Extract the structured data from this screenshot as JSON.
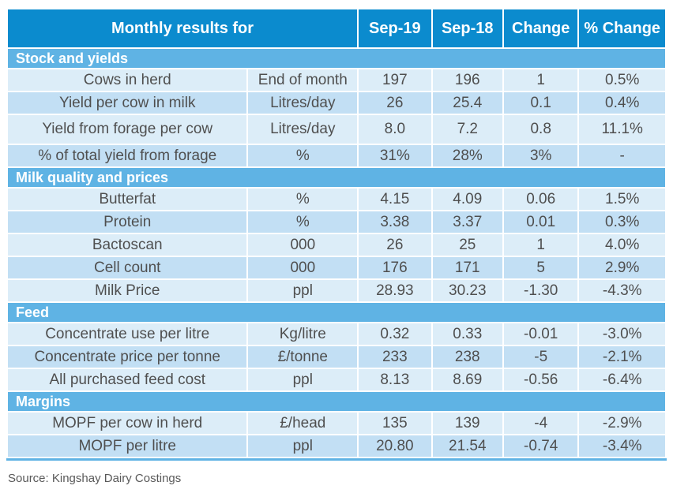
{
  "chart_data": {
    "type": "table",
    "title": "Monthly results for",
    "columns": [
      "Sep-19",
      "Sep-18",
      "Change",
      "% Change"
    ],
    "sections": [
      {
        "title": "Stock and yields",
        "rows": [
          {
            "label": "Cows in herd",
            "unit": "End of month",
            "sep19": "197",
            "sep18": "196",
            "change": "1",
            "pct_change": "0.5%"
          },
          {
            "label": "Yield per cow in milk",
            "unit": "Litres/day",
            "sep19": "26",
            "sep18": "25.4",
            "change": "0.1",
            "pct_change": "0.4%"
          },
          {
            "label": "Yield from forage per cow",
            "unit": "Litres/day",
            "sep19": "8.0",
            "sep18": "7.2",
            "change": "0.8",
            "pct_change": "11.1%"
          },
          {
            "label": "% of total yield from forage",
            "unit": "%",
            "sep19": "31%",
            "sep18": "28%",
            "change": "3%",
            "pct_change": "-"
          }
        ]
      },
      {
        "title": "Milk quality and prices",
        "rows": [
          {
            "label": "Butterfat",
            "unit": "%",
            "sep19": "4.15",
            "sep18": "4.09",
            "change": "0.06",
            "pct_change": "1.5%"
          },
          {
            "label": "Protein",
            "unit": "%",
            "sep19": "3.38",
            "sep18": "3.37",
            "change": "0.01",
            "pct_change": "0.3%"
          },
          {
            "label": "Bactoscan",
            "unit": "000",
            "sep19": "26",
            "sep18": "25",
            "change": "1",
            "pct_change": "4.0%"
          },
          {
            "label": "Cell count",
            "unit": "000",
            "sep19": "176",
            "sep18": "171",
            "change": "5",
            "pct_change": "2.9%"
          },
          {
            "label": "Milk Price",
            "unit": "ppl",
            "sep19": "28.93",
            "sep18": "30.23",
            "change": "-1.30",
            "pct_change": "-4.3%"
          }
        ]
      },
      {
        "title": "Feed",
        "rows": [
          {
            "label": "Concentrate use per litre",
            "unit": "Kg/litre",
            "sep19": "0.32",
            "sep18": "0.33",
            "change": "-0.01",
            "pct_change": "-3.0%"
          },
          {
            "label": "Concentrate price per tonne",
            "unit": "£/tonne",
            "sep19": "233",
            "sep18": "238",
            "change": "-5",
            "pct_change": "-2.1%"
          },
          {
            "label": "All purchased feed cost",
            "unit": "ppl",
            "sep19": "8.13",
            "sep18": "8.69",
            "change": "-0.56",
            "pct_change": "-6.4%"
          }
        ]
      },
      {
        "title": "Margins",
        "rows": [
          {
            "label": "MOPF per cow in herd",
            "unit": "£/head",
            "sep19": "135",
            "sep18": "139",
            "change": "-4",
            "pct_change": "-2.9%"
          },
          {
            "label": "MOPF per litre",
            "unit": "ppl",
            "sep19": "20.80",
            "sep18": "21.54",
            "change": "-0.74",
            "pct_change": "-3.4%"
          }
        ]
      }
    ]
  },
  "source_note": "Source: Kingshay Dairy Costings",
  "colors": {
    "header_bg": "#0b8bce",
    "section_bg": "#5fb3e4",
    "row_light": "#dcedf8",
    "row_dark": "#c2dff4",
    "bottom_border": "#5fb3e4",
    "header_text": "#ffffff",
    "data_text": "#4f4f4f",
    "source_text": "#595959"
  }
}
